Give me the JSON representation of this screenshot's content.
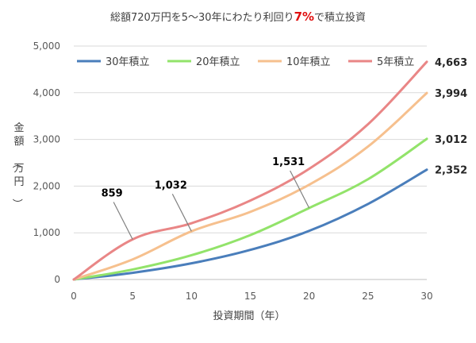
{
  "chart_data": {
    "type": "line",
    "title": {
      "before": "総額720万円を5～30年にわたり利回り",
      "accent": "7%",
      "after": "で積立投資"
    },
    "xlabel": "投資期間（年）",
    "ylabel": "金額（万円）",
    "xlim": [
      0,
      30
    ],
    "ylim": [
      0,
      5000
    ],
    "xticks": [
      0,
      5,
      10,
      15,
      20,
      25,
      30
    ],
    "yticks": [
      0,
      1000,
      2000,
      3000,
      4000,
      5000
    ],
    "ytick_labels": [
      "0",
      "1,000",
      "2,000",
      "3,000",
      "4,000",
      "5,000"
    ],
    "grid": true,
    "legend_position": "top",
    "series": [
      {
        "name": "30年積立",
        "color": "#4a7ebb",
        "x": [
          0,
          5,
          10,
          15,
          20,
          25,
          30
        ],
        "values": [
          0,
          143,
          346,
          634,
          1041,
          1617,
          2352
        ],
        "end_label": "2,352"
      },
      {
        "name": "20年積立",
        "color": "#92e36a",
        "x": [
          0,
          5,
          10,
          15,
          20,
          25,
          30
        ],
        "values": [
          0,
          214,
          519,
          951,
          1531,
          2147,
          3012
        ],
        "end_label": "3,012",
        "callout": {
          "x": 20,
          "value": 1531,
          "label": "1,531"
        }
      },
      {
        "name": "10年積立",
        "color": "#f6c08e",
        "x": [
          0,
          5,
          10,
          15,
          20,
          25,
          30
        ],
        "values": [
          0,
          430,
          1032,
          1448,
          2030,
          2847,
          3994
        ],
        "end_label": "3,994",
        "callout": {
          "x": 10,
          "value": 1032,
          "label": "1,032"
        }
      },
      {
        "name": "5年積立",
        "color": "#e98686",
        "x": [
          0,
          5,
          10,
          15,
          20,
          25,
          30
        ],
        "values": [
          0,
          859,
          1205,
          1690,
          2371,
          3325,
          4663
        ],
        "end_label": "4,663",
        "callout": {
          "x": 5,
          "value": 859,
          "label": "859"
        }
      }
    ]
  }
}
